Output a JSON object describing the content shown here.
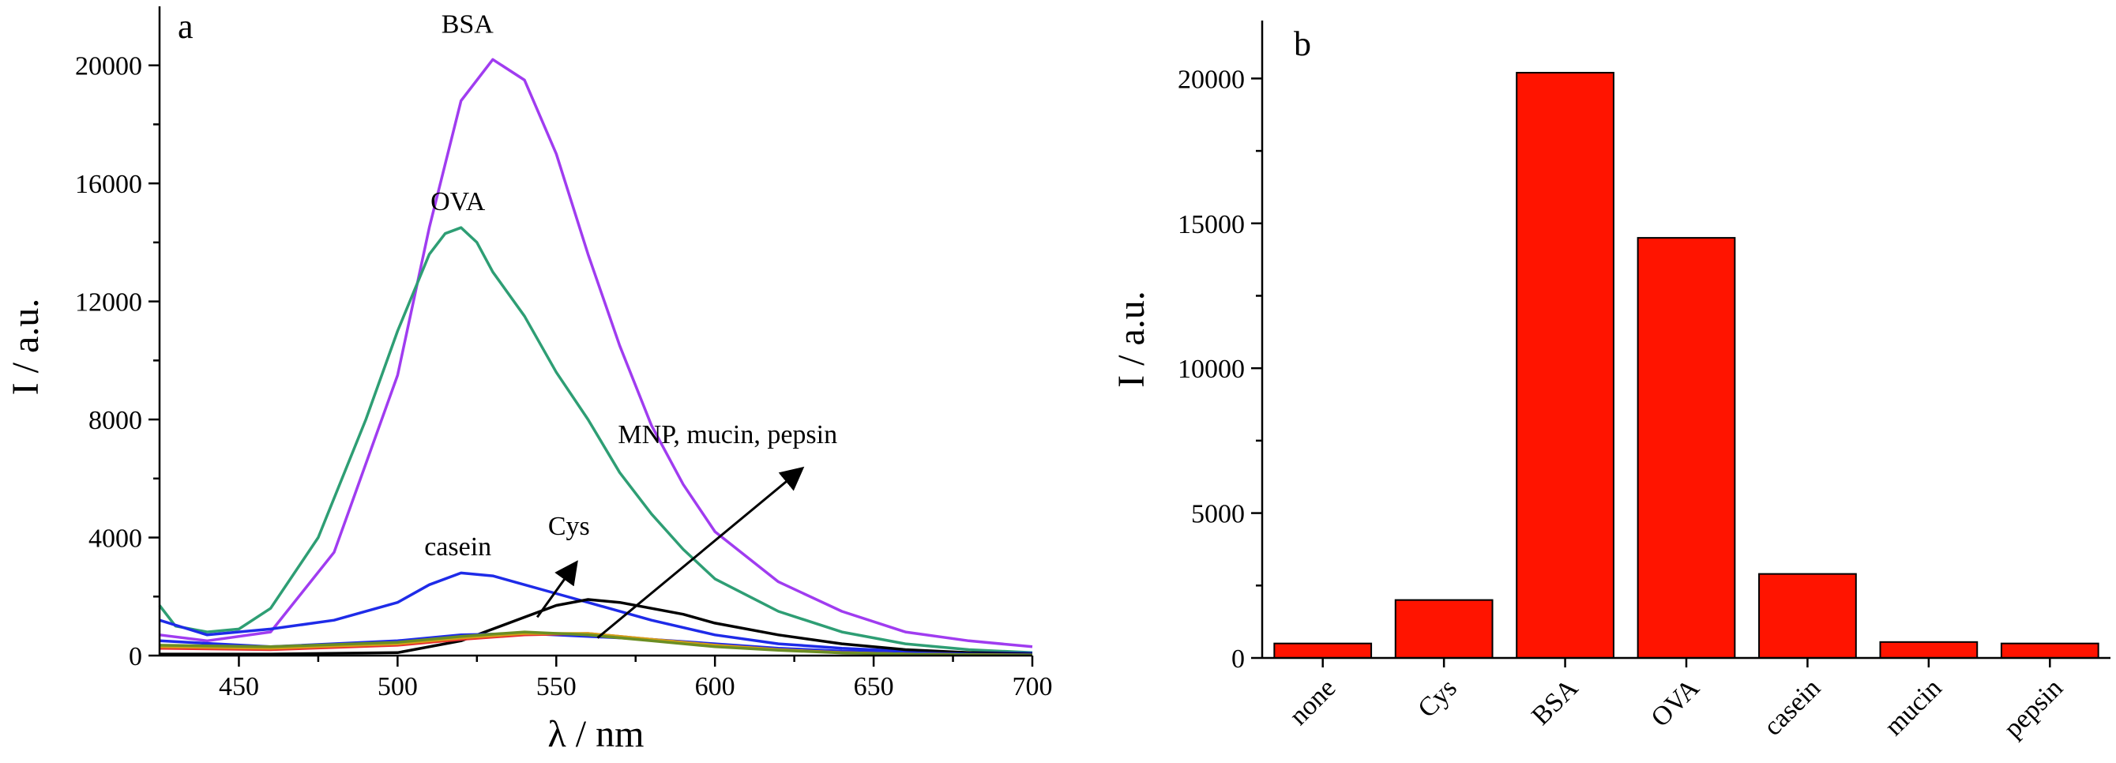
{
  "chart_data": [
    {
      "panel": "a",
      "type": "line",
      "xlabel": "λ / nm",
      "ylabel": "I / a.u.",
      "xlim": [
        425,
        700
      ],
      "ylim": [
        0,
        22000
      ],
      "xticks": [
        450,
        500,
        550,
        600,
        650,
        700
      ],
      "yticks": [
        0,
        4000,
        8000,
        12000,
        16000,
        20000
      ],
      "series": [
        {
          "name": "BSA",
          "color": "#A03CF0",
          "x": [
            425,
            440,
            460,
            480,
            500,
            510,
            520,
            530,
            540,
            550,
            560,
            570,
            580,
            590,
            600,
            620,
            640,
            660,
            680,
            700
          ],
          "y": [
            700,
            500,
            800,
            3500,
            9500,
            14500,
            18800,
            20200,
            19500,
            17000,
            13600,
            10500,
            7800,
            5800,
            4200,
            2500,
            1500,
            800,
            500,
            300
          ]
        },
        {
          "name": "OVA",
          "color": "#2E9E74",
          "x": [
            425,
            430,
            440,
            450,
            460,
            475,
            490,
            500,
            510,
            515,
            520,
            525,
            530,
            540,
            550,
            560,
            570,
            580,
            590,
            600,
            620,
            640,
            660,
            680,
            700
          ],
          "y": [
            1700,
            1000,
            800,
            900,
            1600,
            4000,
            8000,
            11000,
            13600,
            14300,
            14500,
            14000,
            13000,
            11500,
            9600,
            8000,
            6200,
            4800,
            3600,
            2600,
            1500,
            800,
            400,
            200,
            100
          ]
        },
        {
          "name": "casein",
          "color": "#1E2BE8",
          "x": [
            425,
            440,
            460,
            480,
            500,
            510,
            520,
            530,
            540,
            550,
            560,
            580,
            600,
            620,
            640,
            660,
            680,
            700
          ],
          "y": [
            1200,
            700,
            900,
            1200,
            1800,
            2400,
            2800,
            2700,
            2400,
            2100,
            1800,
            1200,
            700,
            400,
            250,
            150,
            100,
            80
          ]
        },
        {
          "name": "Cys",
          "color": "#000000",
          "x": [
            425,
            460,
            500,
            520,
            530,
            540,
            550,
            560,
            570,
            580,
            590,
            600,
            620,
            640,
            660,
            680,
            700
          ],
          "y": [
            50,
            50,
            100,
            500,
            900,
            1300,
            1700,
            1900,
            1800,
            1600,
            1400,
            1100,
            700,
            400,
            200,
            100,
            50
          ]
        },
        {
          "name": "none",
          "color": "#1E2BE8",
          "x": [
            425,
            460,
            500,
            520,
            540,
            560,
            580,
            600,
            620,
            640,
            660,
            680,
            700
          ],
          "y": [
            500,
            300,
            500,
            700,
            750,
            650,
            550,
            400,
            250,
            150,
            100,
            50,
            30
          ]
        },
        {
          "name": "MNP",
          "color": "#E83030",
          "x": [
            425,
            460,
            500,
            520,
            540,
            560,
            580,
            600,
            620,
            640,
            660,
            680,
            700
          ],
          "y": [
            250,
            200,
            350,
            550,
            700,
            750,
            550,
            350,
            200,
            100,
            50,
            30,
            20
          ]
        },
        {
          "name": "mucin",
          "color": "#D4A017",
          "x": [
            425,
            460,
            500,
            520,
            540,
            560,
            580,
            600,
            620,
            640,
            660,
            680,
            700
          ],
          "y": [
            300,
            250,
            400,
            600,
            750,
            750,
            550,
            350,
            200,
            100,
            50,
            30,
            20
          ]
        },
        {
          "name": "pepsin",
          "color": "#6B8E23",
          "x": [
            425,
            460,
            500,
            520,
            540,
            560,
            580,
            600,
            620,
            640,
            660,
            680,
            700
          ],
          "y": [
            350,
            300,
            450,
            650,
            800,
            700,
            500,
            300,
            180,
            90,
            50,
            30,
            20
          ]
        }
      ],
      "annotations": [
        {
          "text": "BSA",
          "x": 522,
          "y": 21100
        },
        {
          "text": "OVA",
          "x": 519,
          "y": 15100
        },
        {
          "text": "casein",
          "x": 519,
          "y": 3400
        },
        {
          "text": "Cys",
          "x": 554,
          "y": 4100
        },
        {
          "text": "MNP, mucin, pepsin",
          "x": 613,
          "y": 7200
        }
      ]
    },
    {
      "panel": "b",
      "type": "bar",
      "xlabel": "",
      "ylabel": "I / a.u.",
      "ylim": [
        0,
        22000
      ],
      "yticks": [
        0,
        5000,
        10000,
        15000,
        20000
      ],
      "bar_color": "#FF1400",
      "categories": [
        "none",
        "Cys",
        "BSA",
        "OVA",
        "casein",
        "mucin",
        "pepsin"
      ],
      "values": [
        500,
        2000,
        20200,
        14500,
        2900,
        550,
        500
      ]
    }
  ]
}
